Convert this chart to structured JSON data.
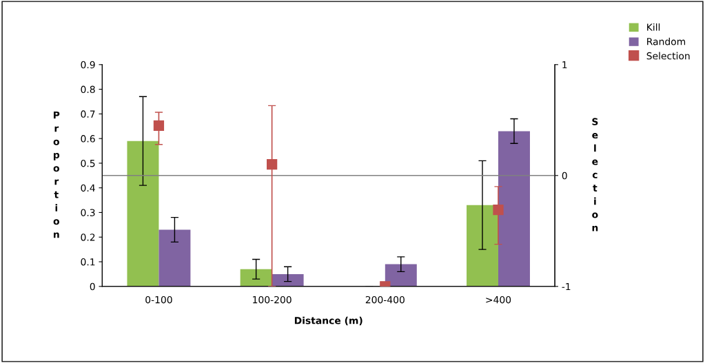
{
  "chart_data": {
    "type": "bar",
    "xlabel": "Distance (m)",
    "ylabel": "Proportion",
    "y2label": "Selection",
    "categories": [
      "0-100",
      "100-200",
      "200-400",
      ">400"
    ],
    "series": [
      {
        "name": "Kill",
        "color": "#92c050",
        "values": [
          0.59,
          0.07,
          0,
          0.33
        ],
        "errors": [
          0.18,
          0.04,
          null,
          0.18
        ]
      },
      {
        "name": "Random",
        "color": "#8064a2",
        "values": [
          0.23,
          0.05,
          0.09,
          0.63
        ],
        "errors": [
          0.05,
          0.03,
          0.03,
          0.05
        ]
      },
      {
        "name": "Selection",
        "type": "scatter",
        "axis": "y2",
        "color": "#c0504d",
        "values": [
          0.45,
          0.1,
          -1,
          -0.31
        ],
        "errors": [
          [
            0.28,
            0.57
          ],
          [
            -1,
            0.63
          ],
          null,
          [
            -0.62,
            -0.1
          ]
        ]
      }
    ],
    "ylim": [
      0,
      0.9
    ],
    "yticks": [
      0,
      {
        "value": 0.1,
        "label": "0.1"
      },
      {
        "value": 0.2,
        "label": "0.2"
      },
      {
        "value": 0.3,
        "label": "0.3"
      },
      {
        "value": 0.4,
        "label": "0.4"
      },
      {
        "value": 0.5,
        "label": "0.5"
      },
      {
        "value": 0.6,
        "label": "0.6"
      },
      {
        "value": 0.7,
        "label": "0.7"
      },
      {
        "value": 0.8,
        "label": "0.8"
      },
      {
        "value": 0.9,
        "label": "0.9"
      }
    ],
    "y2lim": [
      -1,
      1
    ],
    "y2ticks": [
      -1,
      0,
      1
    ],
    "ref_lines": [
      {
        "axis": "y2",
        "value": 0,
        "label": null,
        "color": "#808080"
      }
    ],
    "marker": "square",
    "legend": "top right",
    "grid": false
  }
}
